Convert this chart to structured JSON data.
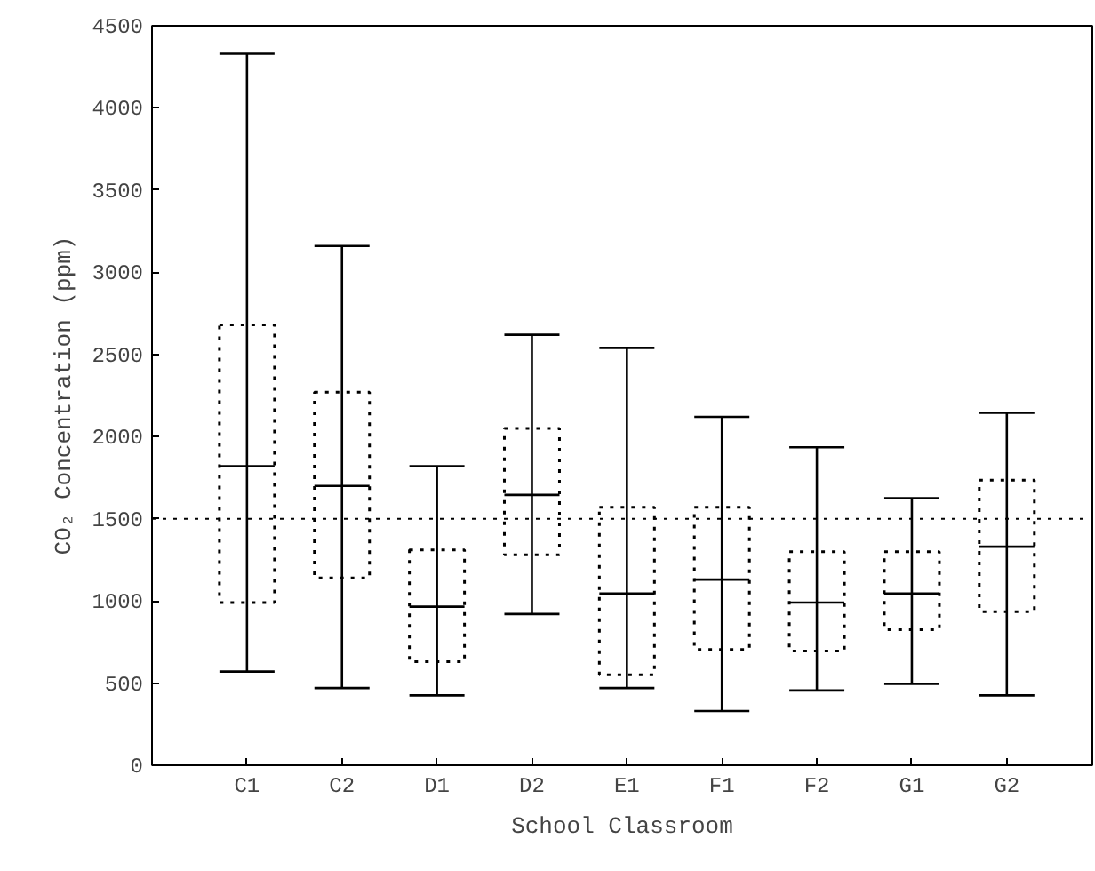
{
  "chart_data": {
    "type": "box",
    "xlabel": "School Classroom",
    "ylabel": "CO₂ Concentration (ppm)",
    "categories": [
      "C1",
      "C2",
      "D1",
      "D2",
      "E1",
      "F1",
      "F2",
      "G1",
      "G2"
    ],
    "boxes": [
      {
        "low": 570,
        "q1": 990,
        "median": 1820,
        "q3": 2680,
        "high": 4330
      },
      {
        "low": 470,
        "q1": 1140,
        "median": 1700,
        "q3": 2270,
        "high": 3160
      },
      {
        "low": 425,
        "q1": 630,
        "median": 965,
        "q3": 1310,
        "high": 1820
      },
      {
        "low": 920,
        "q1": 1280,
        "median": 1645,
        "q3": 2050,
        "high": 2620
      },
      {
        "low": 470,
        "q1": 550,
        "median": 1045,
        "q3": 1570,
        "high": 2540
      },
      {
        "low": 330,
        "q1": 705,
        "median": 1130,
        "q3": 1570,
        "high": 2120
      },
      {
        "low": 455,
        "q1": 695,
        "median": 990,
        "q3": 1300,
        "high": 1935
      },
      {
        "low": 495,
        "q1": 825,
        "median": 1045,
        "q3": 1300,
        "high": 1625
      },
      {
        "low": 425,
        "q1": 935,
        "median": 1330,
        "q3": 1735,
        "high": 2145
      }
    ],
    "color": "#000000",
    "ylim": [
      0,
      4500
    ],
    "yticks": [
      0,
      500,
      1000,
      1500,
      2000,
      2500,
      3000,
      3500,
      4000,
      4500
    ],
    "ref_lines": [
      {
        "axis": "y",
        "value": 1500,
        "color": "#000000",
        "line_style": "dotted"
      }
    ],
    "grid": false
  }
}
